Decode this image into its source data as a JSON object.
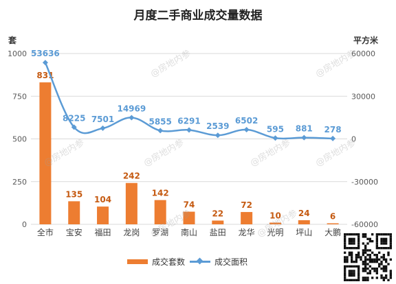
{
  "chart_data": {
    "type": "bar",
    "title": "月度二手商业成交量数据",
    "categories": [
      "全市",
      "宝安",
      "福田",
      "龙岗",
      "罗湖",
      "南山",
      "盐田",
      "龙华",
      "光明",
      "坪山",
      "大鹏"
    ],
    "series": [
      {
        "name": "成交套数",
        "type": "bar",
        "axis": "left",
        "color": "#ED7D31",
        "values": [
          831,
          135,
          104,
          242,
          142,
          74,
          22,
          72,
          10,
          24,
          6
        ]
      },
      {
        "name": "成交面积",
        "type": "line",
        "axis": "right",
        "color": "#5B9BD5",
        "values": [
          53636,
          8225,
          7501,
          14969,
          5855,
          6291,
          2539,
          6502,
          595,
          881,
          278
        ]
      }
    ],
    "y_left": {
      "unit": "套",
      "min": 0,
      "max": 1000,
      "ticks": [
        "0",
        "250",
        "500",
        "750",
        "1000"
      ]
    },
    "y_right": {
      "unit": "平方米",
      "min": -60000,
      "max": 60000,
      "ticks": [
        "-60000",
        "-30000",
        "0",
        "30000",
        "60000"
      ]
    },
    "grid": true,
    "legend": "bottom"
  },
  "watermark_text": "@房地内参",
  "qr_label": "qr-code"
}
